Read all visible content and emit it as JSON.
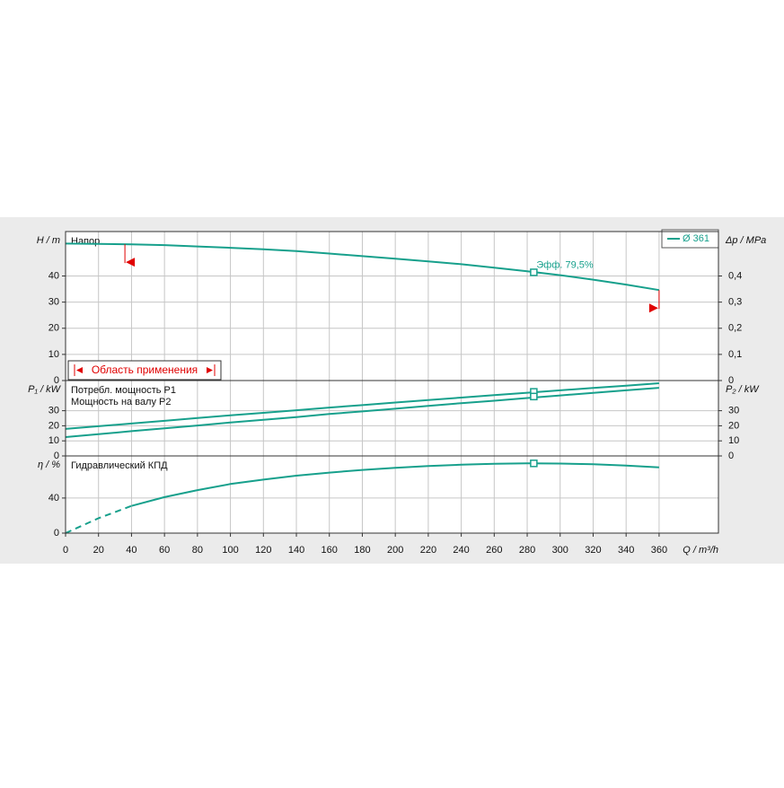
{
  "chart_data": [
    {
      "type": "line",
      "title": "Напор",
      "ylabel": "H / m",
      "y2label": "Δp / MPa",
      "xlim": [
        0,
        396
      ],
      "ylim": [
        0,
        57
      ],
      "yticks": [
        0,
        10,
        20,
        30,
        40
      ],
      "y2lim": [
        0,
        0.57
      ],
      "y2ticks": [
        0,
        {
          "value": 0.1,
          "label": "0,1"
        },
        {
          "value": 0.2,
          "label": "0,2"
        },
        {
          "value": 0.3,
          "label": "0,3"
        },
        {
          "value": 0.4,
          "label": "0,4"
        }
      ],
      "x": [
        0,
        20,
        40,
        60,
        80,
        100,
        120,
        140,
        160,
        180,
        200,
        220,
        240,
        260,
        280,
        300,
        320,
        340,
        360
      ],
      "series": [
        {
          "name": "Ø 361",
          "color": "#17a08c",
          "values": [
            52.4,
            52.3,
            52.1,
            51.8,
            51.3,
            50.8,
            50.2,
            49.5,
            48.6,
            47.6,
            46.6,
            45.6,
            44.5,
            43.2,
            41.8,
            40.3,
            38.6,
            36.7,
            34.6
          ],
          "operating_point": [
            284,
            41.4
          ]
        }
      ],
      "annotation": "Эфф.  79,5%",
      "range": [
        36,
        360
      ],
      "range_label": "Область применения",
      "range_color": "#e00000",
      "legend": "upper right",
      "grid": true
    },
    {
      "type": "line",
      "ylabel": "P₁ / kW",
      "y2label": "P₂ / kW",
      "xlim": [
        0,
        396
      ],
      "ylim": [
        0,
        50
      ],
      "yticks": [
        0,
        10,
        20,
        30
      ],
      "y2lim": [
        0,
        50
      ],
      "y2ticks": [
        0,
        10,
        20,
        30
      ],
      "x": [
        0,
        20,
        40,
        60,
        80,
        100,
        120,
        140,
        160,
        180,
        200,
        220,
        240,
        260,
        280,
        300,
        320,
        340,
        360
      ],
      "series": [
        {
          "name": "Потребл. мощность P1",
          "color": "#17a08c",
          "values": [
            17.9,
            19.7,
            21.5,
            23.3,
            25.1,
            26.9,
            28.6,
            30.3,
            32.1,
            33.7,
            35.4,
            37.1,
            38.7,
            40.3,
            41.9,
            43.5,
            45.1,
            46.6,
            48.2
          ],
          "operating_point": [
            284,
            42.5
          ]
        },
        {
          "name": "Мощность на валу P2",
          "color": "#17a08c",
          "values": [
            12.5,
            14.4,
            16.4,
            18.3,
            20.2,
            22.2,
            24.0,
            25.8,
            27.8,
            29.5,
            31.3,
            33.2,
            35.0,
            36.6,
            38.4,
            40.1,
            41.8,
            43.5,
            45.2
          ],
          "operating_point": [
            284,
            39.4
          ]
        }
      ],
      "grid": true
    },
    {
      "type": "line",
      "title": "Гидравлический КПД",
      "ylabel": "η / %",
      "xlim": [
        0,
        396
      ],
      "ylim": [
        0,
        88
      ],
      "yticks": [
        0,
        40
      ],
      "x": [
        0,
        20,
        40,
        60,
        80,
        100,
        120,
        140,
        160,
        180,
        200,
        220,
        240,
        260,
        280,
        300,
        320,
        340,
        360
      ],
      "series": [
        {
          "color": "#17a08c",
          "values": [
            0,
            17,
            31,
            41,
            49,
            56,
            61,
            65.5,
            69,
            72,
            74.5,
            76.5,
            78,
            79,
            79.5,
            79.3,
            78.5,
            77,
            75
          ],
          "operating_point": [
            284,
            79.5
          ]
        }
      ],
      "xlabel": "Q / m³/h",
      "xticks": [
        0,
        20,
        40,
        60,
        80,
        100,
        120,
        140,
        160,
        180,
        200,
        220,
        240,
        260,
        280,
        300,
        320,
        340,
        360
      ],
      "dashed_outside_range": true,
      "grid": true
    }
  ]
}
